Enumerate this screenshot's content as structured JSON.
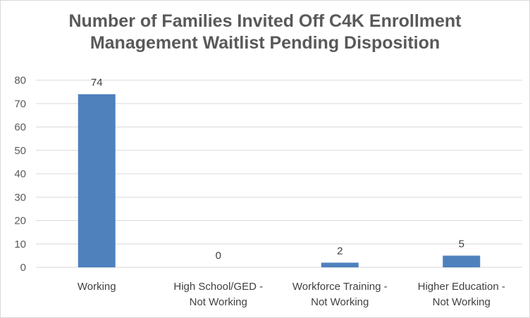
{
  "chart_data": {
    "type": "bar",
    "title": [
      "Number of Families Invited Off C4K Enrollment",
      "Management Waitlist Pending Disposition"
    ],
    "categories": [
      [
        "Working"
      ],
      [
        "High School/GED -",
        "Not Working"
      ],
      [
        "Workforce Training -",
        "Not Working"
      ],
      [
        "Higher Education -",
        "Not Working"
      ]
    ],
    "values": [
      74,
      0,
      2,
      5
    ],
    "data_labels": [
      "74",
      "0",
      "2",
      "5"
    ],
    "ylim": [
      0,
      80
    ],
    "yticks": [
      0,
      10,
      20,
      30,
      40,
      50,
      60,
      70,
      80
    ],
    "grid": true,
    "legend": "none",
    "bar_color": "#4f81bd",
    "grid_color": "#d9d9d9"
  }
}
